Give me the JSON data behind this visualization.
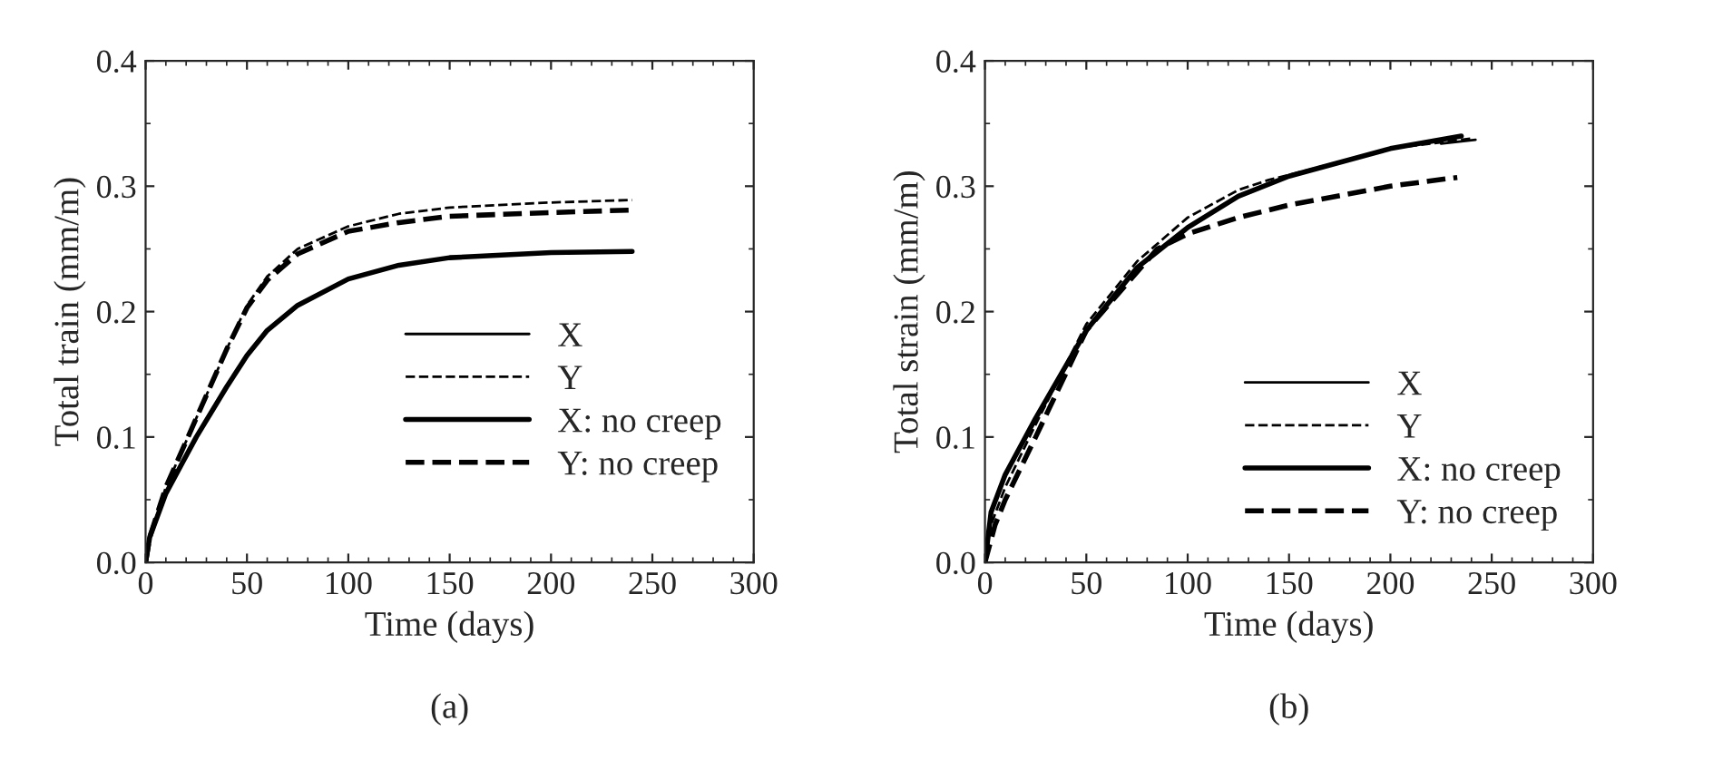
{
  "chart_data": [
    {
      "type": "line",
      "title": "(a)",
      "xlabel": "Time (days)",
      "ylabel": "Total train (mm/m)",
      "xlim": [
        0,
        300
      ],
      "ylim": [
        0,
        0.4
      ],
      "xticks": [
        0,
        50,
        100,
        150,
        200,
        250,
        300
      ],
      "yticks": [
        {
          "value": 0,
          "label": "0.0"
        },
        0.1,
        0.2,
        0.3,
        0.4
      ],
      "grid": false,
      "legend": "right",
      "marker": "none",
      "series": [
        {
          "name": "X",
          "color": "#000000",
          "line_style": "solid"
        },
        {
          "name": "Y",
          "color": "#000000",
          "line_style": "dashed",
          "x": [
            0,
            2,
            10,
            25,
            40,
            50,
            60,
            75,
            100,
            125,
            150,
            200,
            240
          ],
          "values": [
            0,
            0.02,
            0.06,
            0.115,
            0.17,
            0.205,
            0.228,
            0.25,
            0.268,
            0.278,
            0.283,
            0.287,
            0.289
          ]
        },
        {
          "name": "X: no creep",
          "color": "#000000",
          "line_style": "solid",
          "x": [
            0,
            2,
            10,
            25,
            40,
            50,
            60,
            75,
            100,
            125,
            150,
            200,
            240
          ],
          "values": [
            0,
            0.02,
            0.055,
            0.1,
            0.14,
            0.165,
            0.185,
            0.205,
            0.226,
            0.237,
            0.243,
            0.247,
            0.248
          ]
        },
        {
          "name": "Y: no creep",
          "color": "#000000",
          "line_style": "dashed",
          "x": [
            0,
            2,
            10,
            25,
            40,
            50,
            60,
            75,
            100,
            125,
            150,
            200,
            240
          ],
          "values": [
            0,
            0.02,
            0.06,
            0.115,
            0.17,
            0.203,
            0.225,
            0.246,
            0.264,
            0.271,
            0.276,
            0.279,
            0.281
          ]
        }
      ]
    },
    {
      "type": "line",
      "title": "(b)",
      "xlabel": "Time (days)",
      "ylabel": "Total strain (mm/m)",
      "xlim": [
        0,
        300
      ],
      "ylim": [
        0,
        0.4
      ],
      "xticks": [
        0,
        50,
        100,
        150,
        200,
        250,
        300
      ],
      "yticks": [
        {
          "value": 0,
          "label": "0.0"
        },
        0.1,
        0.2,
        0.3,
        0.4
      ],
      "grid": false,
      "legend": "bottom right",
      "marker": "none",
      "series": [
        {
          "name": "X",
          "color": "#000000",
          "line_style": "solid",
          "x": [
            225,
            242
          ],
          "values": [
            0.334,
            0.337
          ]
        },
        {
          "name": "Y",
          "color": "#000000",
          "line_style": "dashed",
          "x": [
            0,
            3,
            10,
            25,
            50,
            75,
            100,
            125,
            140,
            150,
            200,
            240
          ],
          "values": [
            0,
            0.03,
            0.06,
            0.11,
            0.19,
            0.24,
            0.275,
            0.297,
            0.305,
            0.309,
            0.33,
            0.338
          ]
        },
        {
          "name": "X: no creep",
          "color": "#000000",
          "line_style": "solid",
          "x": [
            0,
            3,
            10,
            25,
            50,
            75,
            100,
            125,
            150,
            200,
            235
          ],
          "values": [
            0,
            0.04,
            0.07,
            0.115,
            0.185,
            0.235,
            0.267,
            0.292,
            0.308,
            0.33,
            0.34
          ]
        },
        {
          "name": "Y: no creep",
          "color": "#000000",
          "line_style": "dashed",
          "x": [
            0,
            5,
            10,
            25,
            50,
            85,
            100,
            125,
            150,
            200,
            233
          ],
          "values": [
            0,
            0.03,
            0.05,
            0.1,
            0.185,
            0.25,
            0.262,
            0.275,
            0.285,
            0.3,
            0.307
          ]
        }
      ]
    }
  ]
}
